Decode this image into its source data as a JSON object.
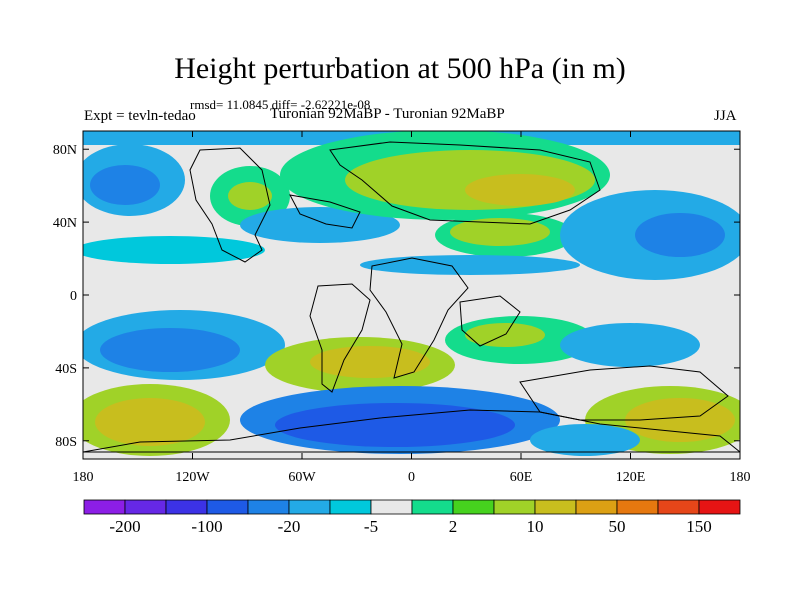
{
  "title": "Height perturbation at 500 hPa (in m)",
  "stats": "rmsd= 11.0845 diff= -2.62221e-08",
  "experiment": "Expt = tevln-tedao",
  "subtitle": "Turonian  92MaBP - Turonian  92MaBP",
  "season": "JJA",
  "lat_axis": {
    "ticks": [
      {
        "value": 80,
        "label": "80N"
      },
      {
        "value": 40,
        "label": "40N"
      },
      {
        "value": 0,
        "label": "0"
      },
      {
        "value": -40,
        "label": "40S"
      },
      {
        "value": -80,
        "label": "80S"
      }
    ]
  },
  "lon_axis": {
    "ticks": [
      {
        "value": -180,
        "label": "180"
      },
      {
        "value": -120,
        "label": "120W"
      },
      {
        "value": -60,
        "label": "60W"
      },
      {
        "value": 0,
        "label": "0"
      },
      {
        "value": 60,
        "label": "60E"
      },
      {
        "value": 120,
        "label": "120E"
      },
      {
        "value": 180,
        "label": "180"
      }
    ]
  },
  "colorbar": {
    "colors": [
      "#8c1ee6",
      "#6628e6",
      "#3c32e6",
      "#1e5ae6",
      "#1e82e6",
      "#23aae6",
      "#00c8dc",
      "#e8e8e8",
      "#14dc8c",
      "#46d21e",
      "#a0d228",
      "#c8be1e",
      "#dca014",
      "#e6780f",
      "#e64619",
      "#e61414"
    ],
    "labels": [
      {
        "boundary": 1,
        "text": "-200"
      },
      {
        "boundary": 3,
        "text": "-100"
      },
      {
        "boundary": 5,
        "text": "-20"
      },
      {
        "boundary": 7,
        "text": "-5"
      },
      {
        "boundary": 9,
        "text": "2"
      },
      {
        "boundary": 11,
        "text": "10"
      },
      {
        "boundary": 13,
        "text": "50"
      },
      {
        "boundary": 15,
        "text": "150"
      }
    ]
  }
}
